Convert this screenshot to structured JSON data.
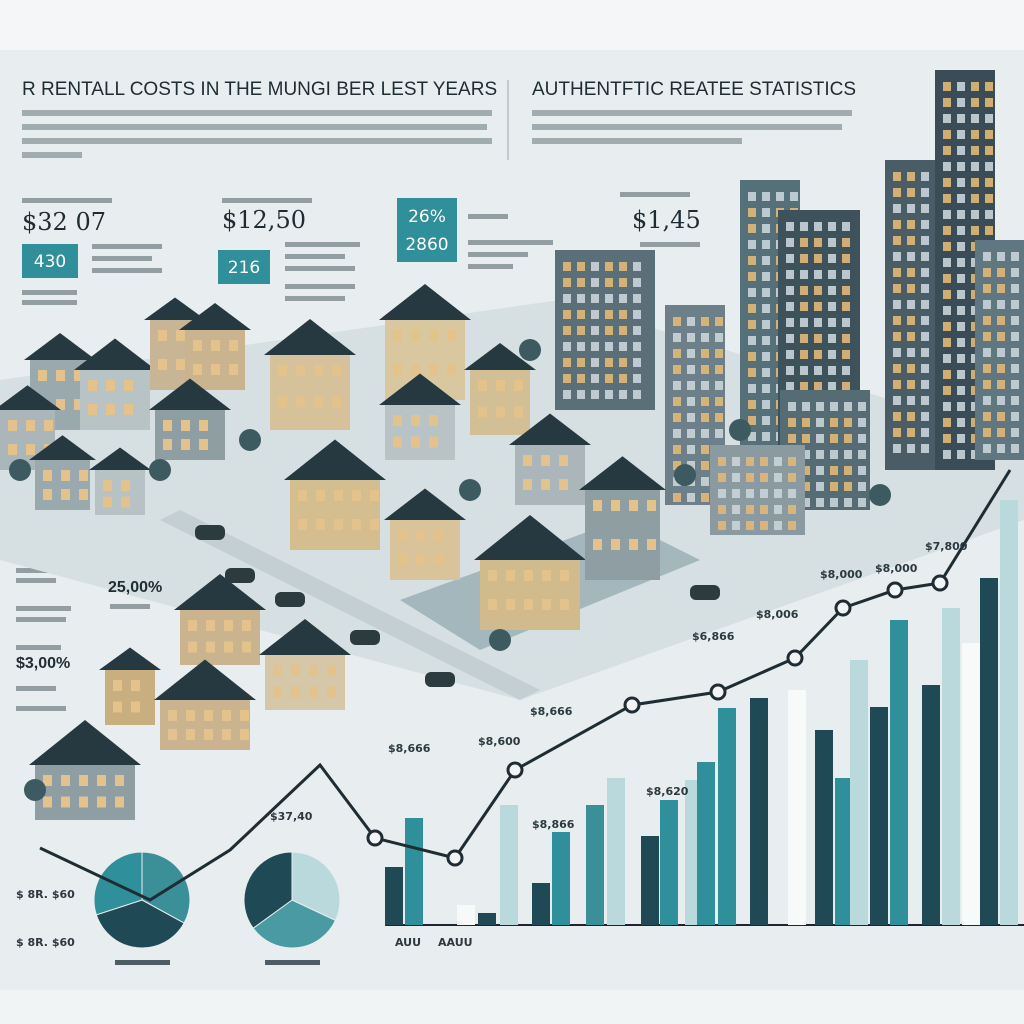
{
  "header": {
    "title": "R RENTALL COSTS IN THE MUNGI BER LEST YEARS",
    "subtitle": "AUTHENTFTIC REATEE STATISTICS"
  },
  "stats": [
    {
      "value": "$32 07",
      "badge": "430"
    },
    {
      "value": "$12,50",
      "badge": "216"
    },
    {
      "value": "26%",
      "badge": "2860"
    },
    {
      "value": "$1,45"
    }
  ],
  "side_stats": [
    "25,00%",
    "$3,00%"
  ],
  "chart_labels": [
    "$37,40",
    "$8,866",
    "$8,600",
    "$8,666",
    "$8,666",
    "$8,620",
    "$6,866",
    "$8,006",
    "$8,000",
    "$8,000",
    "$7,800"
  ],
  "axis_labels": [
    "$ 8R. $60",
    "$ 8R. $60"
  ],
  "x_labels": [
    "AUU",
    "AAUU"
  ]
}
